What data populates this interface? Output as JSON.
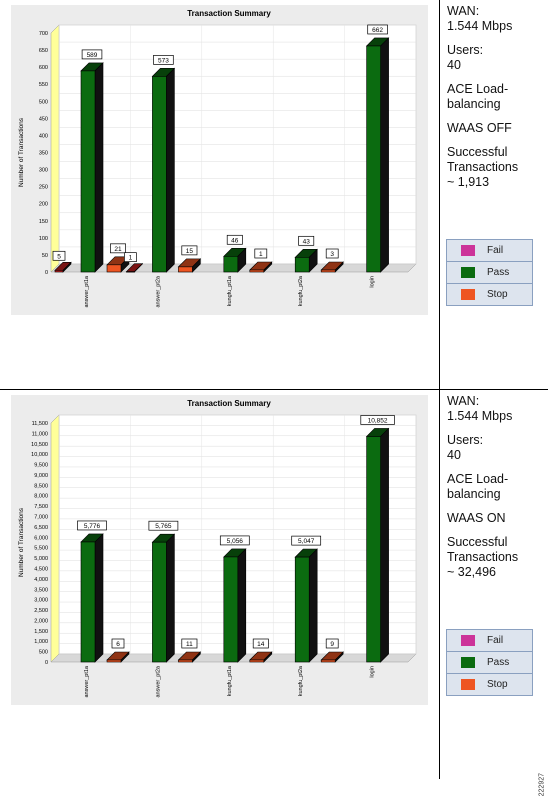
{
  "chart_data": [
    {
      "type": "bar",
      "title": "Transaction Summary",
      "ylabel": "Number of Transactions",
      "xlabel": "",
      "ylim": [
        0,
        700
      ],
      "yticks": [
        0,
        50,
        100,
        150,
        200,
        250,
        300,
        350,
        400,
        450,
        500,
        550,
        600,
        650,
        700
      ],
      "categories": [
        "answer_pt1a",
        "answer_pt2a",
        "kungfu_pt1a",
        "kungfu_pt2a",
        "login"
      ],
      "series": [
        {
          "name": "Fail",
          "color": "#cc3399",
          "values": [
            0,
            0,
            0,
            0,
            0
          ]
        },
        {
          "name": "Pass",
          "color": "#0b6b10",
          "values": [
            589,
            573,
            46,
            43,
            662
          ]
        },
        {
          "name": "Stop",
          "color": "#ee5522",
          "values": [
            21,
            15,
            1,
            3,
            0
          ]
        }
      ],
      "failure_labels": [
        5,
        1,
        null,
        null,
        null
      ],
      "grid": true,
      "legend": "none"
    },
    {
      "type": "bar",
      "title": "Transaction Summary",
      "ylabel": "Number of Transactions",
      "xlabel": "",
      "ylim": [
        0,
        11500
      ],
      "yticks": [
        0,
        500,
        1000,
        1500,
        2000,
        2500,
        3000,
        3500,
        4000,
        4500,
        5000,
        5500,
        6000,
        6500,
        7000,
        7500,
        8000,
        8500,
        9000,
        9500,
        10000,
        10500,
        11000,
        11500
      ],
      "categories": [
        "answer_pt1a",
        "answer_pt2a",
        "kungfu_pt1a",
        "kungfu_pt2a",
        "login"
      ],
      "series": [
        {
          "name": "Pass",
          "color": "#0b6b10",
          "values": [
            5776,
            5765,
            5056,
            5047,
            10852
          ]
        },
        {
          "name": "Stop",
          "color": "#ee5522",
          "values": [
            6,
            11,
            14,
            9,
            0
          ]
        }
      ],
      "grid": true,
      "legend": "none"
    }
  ],
  "panels": [
    {
      "info": {
        "wan_label": "WAN:",
        "wan_value": "1.544 Mbps",
        "users_label": "Users:",
        "users_value": "40",
        "ace_line1": "ACE Load-",
        "ace_line2": "balancing",
        "waas": "WAAS OFF",
        "succ_line1": "Successful",
        "succ_line2": "Transactions",
        "succ_value": "~ 1,913"
      },
      "legend": [
        {
          "label": "Fail",
          "color": "#cc3399"
        },
        {
          "label": "Pass",
          "color": "#0b6b10"
        },
        {
          "label": "Stop",
          "color": "#ee5522"
        }
      ]
    },
    {
      "info": {
        "wan_label": "WAN:",
        "wan_value": "1.544 Mbps",
        "users_label": "Users:",
        "users_value": "40",
        "ace_line1": "ACE Load-",
        "ace_line2": "balancing",
        "waas": "WAAS ON",
        "succ_line1": "Successful",
        "succ_line2": "Transactions",
        "succ_value": "~ 32,496"
      },
      "legend": [
        {
          "label": "Fail",
          "color": "#cc3399"
        },
        {
          "label": "Pass",
          "color": "#0b6b10"
        },
        {
          "label": "Stop",
          "color": "#ee5522"
        }
      ]
    }
  ],
  "figure_id": "222927"
}
